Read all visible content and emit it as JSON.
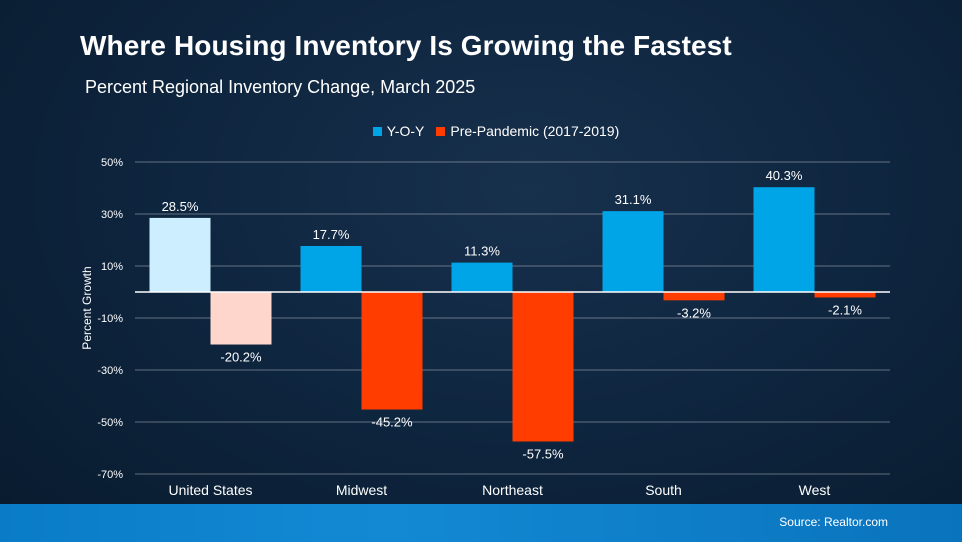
{
  "title": "Where Housing Inventory Is Growing the Fastest",
  "subtitle": "Percent Regional Inventory Change, March 2025",
  "source": "Source: Realtor.com",
  "colors": {
    "yoy": "#00a5e8",
    "pre": "#ff3d00",
    "yoy_us": "#cceeff",
    "pre_us": "#ffd6cc",
    "grid": "#ffffff"
  },
  "chart_data": {
    "type": "bar",
    "title": "Where Housing Inventory Is Growing the Fastest",
    "subtitle": "Percent Regional Inventory Change, March 2025",
    "xlabel": "",
    "ylabel": "Percent Growth",
    "ylim": [
      -70,
      50
    ],
    "yticks": [
      50,
      30,
      10,
      -10,
      -30,
      -50,
      -70
    ],
    "ytick_labels": [
      "50%",
      "30%",
      "10%",
      "-10%",
      "-30%",
      "-50%",
      "-70%"
    ],
    "grid": true,
    "legend_position": "top-center",
    "categories": [
      "United States",
      "Midwest",
      "Northeast",
      "South",
      "West"
    ],
    "series": [
      {
        "name": "Y-O-Y",
        "values": [
          28.5,
          17.7,
          11.3,
          31.1,
          40.3
        ],
        "labels": [
          "28.5%",
          "17.7%",
          "11.3%",
          "31.1%",
          "40.3%"
        ]
      },
      {
        "name": "Pre-Pandemic (2017-2019)",
        "values": [
          -20.2,
          -45.2,
          -57.5,
          -3.2,
          -2.1
        ],
        "labels": [
          "-20.2%",
          "-45.2%",
          "-57.5%",
          "-3.2%",
          "-2.1%"
        ]
      }
    ]
  }
}
